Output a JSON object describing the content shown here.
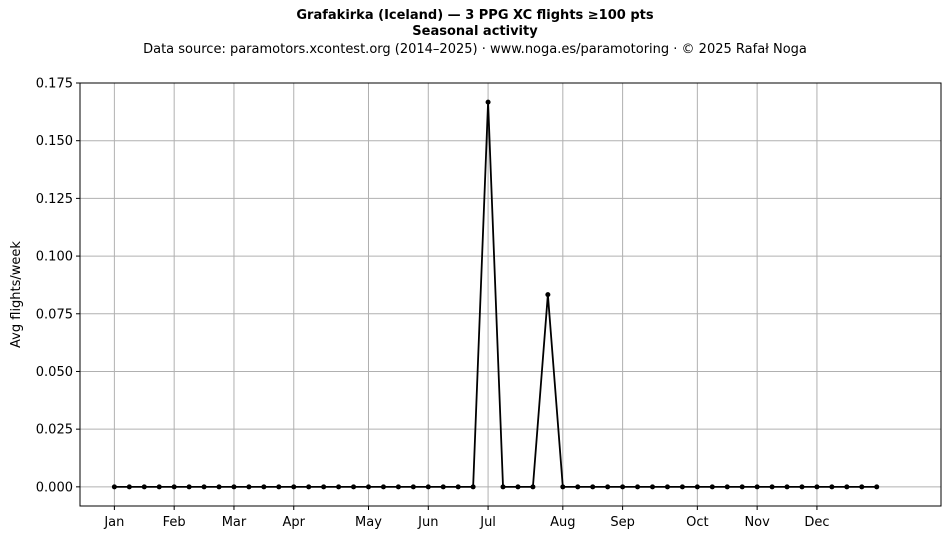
{
  "title_line1": "Grafakirka (Iceland)  —  3 PPG XC flights ≥100 pts",
  "title_line2": "Seasonal activity",
  "subtitle": "Data source: paramotors.xcontest.org (2014–2025)  ·  www.noga.es/paramotoring  ·  © 2025 Rafał Noga",
  "chart_data": {
    "type": "line",
    "title": "Grafakirka (Iceland)  —  3 PPG XC flights ≥100 pts",
    "subtitle": "Seasonal activity",
    "xlabel": "",
    "ylabel": "Avg flights/week",
    "x_unit": "week of year",
    "x": [
      1,
      2,
      3,
      4,
      5,
      6,
      7,
      8,
      9,
      10,
      11,
      12,
      13,
      14,
      15,
      16,
      17,
      18,
      19,
      20,
      21,
      22,
      23,
      24,
      25,
      26,
      27,
      28,
      29,
      30,
      31,
      32,
      33,
      34,
      35,
      36,
      37,
      38,
      39,
      40,
      41,
      42,
      43,
      44,
      45,
      46,
      47,
      48,
      49,
      50,
      51,
      52
    ],
    "series": [
      {
        "values": [
          0,
          0,
          0,
          0,
          0,
          0,
          0,
          0,
          0,
          0,
          0,
          0,
          0,
          0,
          0,
          0,
          0,
          0,
          0,
          0,
          0,
          0,
          0,
          0,
          0,
          0.1667,
          0,
          0,
          0,
          0.0833,
          0,
          0,
          0,
          0,
          0,
          0,
          0,
          0,
          0,
          0,
          0,
          0,
          0,
          0,
          0,
          0,
          0,
          0,
          0,
          0,
          0,
          0
        ],
        "color": "#000000"
      }
    ],
    "month_ticks": [
      {
        "label": "Jan",
        "week": 1
      },
      {
        "label": "Feb",
        "week": 5
      },
      {
        "label": "Mar",
        "week": 9
      },
      {
        "label": "Apr",
        "week": 13
      },
      {
        "label": "May",
        "week": 18
      },
      {
        "label": "Jun",
        "week": 22
      },
      {
        "label": "Jul",
        "week": 26
      },
      {
        "label": "Aug",
        "week": 31
      },
      {
        "label": "Sep",
        "week": 35
      },
      {
        "label": "Oct",
        "week": 40
      },
      {
        "label": "Nov",
        "week": 44
      },
      {
        "label": "Dec",
        "week": 48
      }
    ],
    "xlim": [
      -1.3,
      56.3
    ],
    "ylim": [
      -0.0083,
      0.175
    ],
    "yticks": [
      0,
      0.025,
      0.05,
      0.075,
      0.1,
      0.125,
      0.15,
      0.175
    ],
    "ytick_labels": [
      "0.000",
      "0.025",
      "0.050",
      "0.075",
      "0.100",
      "0.125",
      "0.150",
      "0.175"
    ],
    "grid": true,
    "legend": "none"
  }
}
